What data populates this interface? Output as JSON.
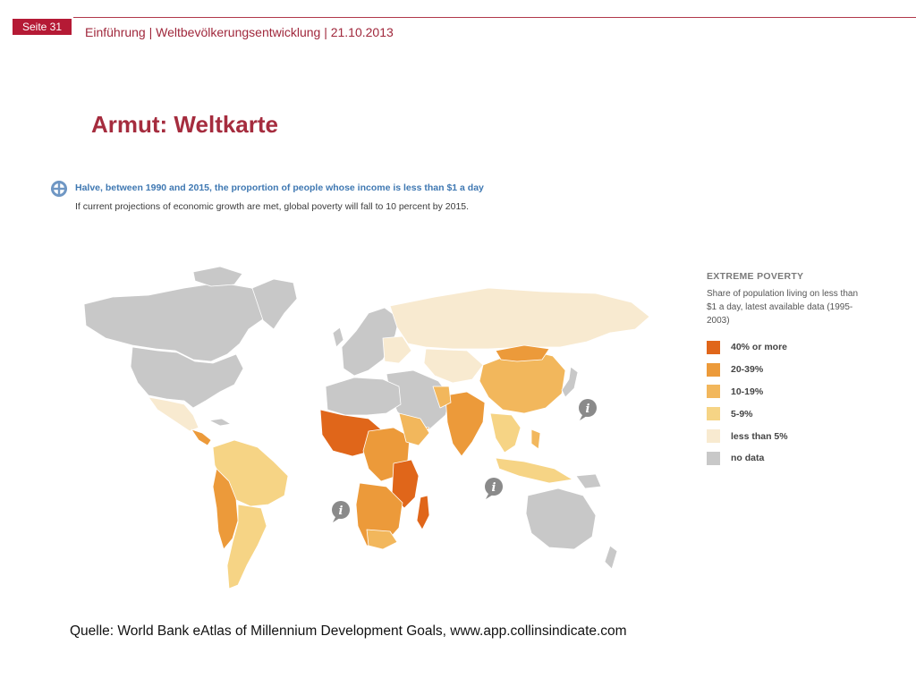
{
  "header": {
    "page_label": "Seite 31",
    "breadcrumb": "Einführung | Weltbevölkerungsentwicklung | 21.10.2013"
  },
  "slide_title": "Armut: Weltkarte",
  "goal": {
    "headline": "Halve, between 1990 and 2015, the proportion of people whose income is less than $1 a day",
    "subline": "If current projections of economic growth are met, global poverty will fall to 10 percent by 2015.",
    "icon": "target-icon"
  },
  "legend": {
    "title": "EXTREME POVERTY",
    "description": "Share of population living on less than $1 a day, latest available data (1995-2003)",
    "items": [
      {
        "label": "40% or more",
        "color": "#e0661a"
      },
      {
        "label": "20-39%",
        "color": "#ec9a3a"
      },
      {
        "label": "10-19%",
        "color": "#f2b75c"
      },
      {
        "label": "5-9%",
        "color": "#f6d485"
      },
      {
        "label": "less than 5%",
        "color": "#f8ead0"
      },
      {
        "label": "no data",
        "color": "#c8c8c8"
      }
    ]
  },
  "map": {
    "info_icons": [
      "info-icon",
      "info-icon",
      "info-icon"
    ]
  },
  "source": "Quelle: World Bank eAtlas of Millennium Development Goals, www.app.collinsindicate.com"
}
